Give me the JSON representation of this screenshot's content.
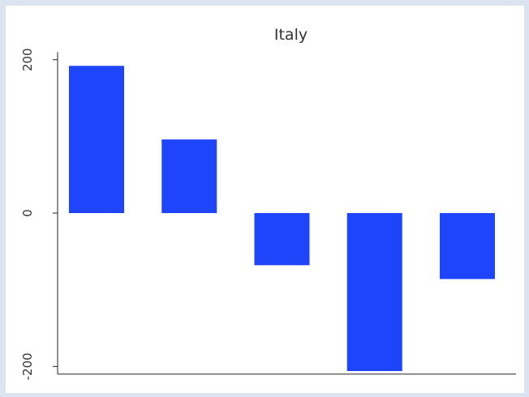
{
  "chart_data": {
    "type": "bar",
    "title": "Italy",
    "xlabel": "",
    "ylabel": "",
    "categories": [
      "",
      "",
      "",
      "",
      ""
    ],
    "values": [
      192,
      96,
      -68,
      -206,
      -86
    ],
    "ylim": [
      -210,
      210
    ],
    "yticks": [
      200,
      0,
      -200
    ],
    "ytick_labels": [
      "200",
      "0",
      "-200"
    ],
    "grid": false,
    "legend": "none",
    "bar_color": "#1f45fa",
    "axis_color": "#222222",
    "background_color": "#ffffff",
    "frame_color": "#dce4f2"
  }
}
